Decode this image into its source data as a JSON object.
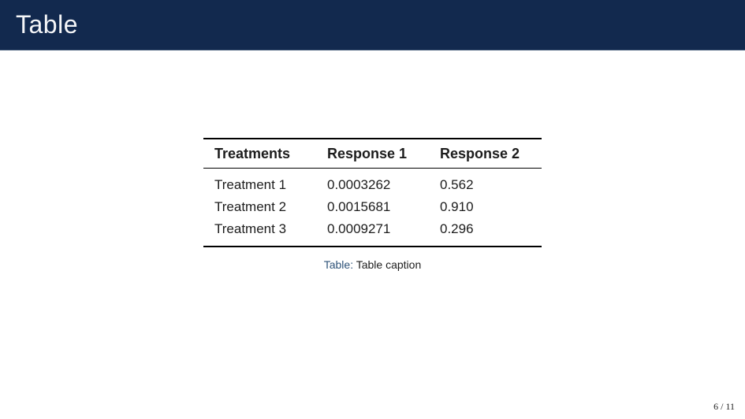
{
  "slide": {
    "title": "Table",
    "page_number": "6 / 11"
  },
  "table": {
    "headers": [
      "Treatments",
      "Response 1",
      "Response 2"
    ],
    "rows": [
      [
        "Treatment 1",
        "0.0003262",
        "0.562"
      ],
      [
        "Treatment 2",
        "0.0015681",
        "0.910"
      ],
      [
        "Treatment 3",
        "0.0009271",
        "0.296"
      ]
    ],
    "caption": {
      "label": "Table:",
      "text": "Table caption"
    }
  },
  "colors": {
    "header_bg": "#12294e",
    "caption_label": "#2d5278",
    "text": "#1c1c1c",
    "rule": "#000000"
  }
}
